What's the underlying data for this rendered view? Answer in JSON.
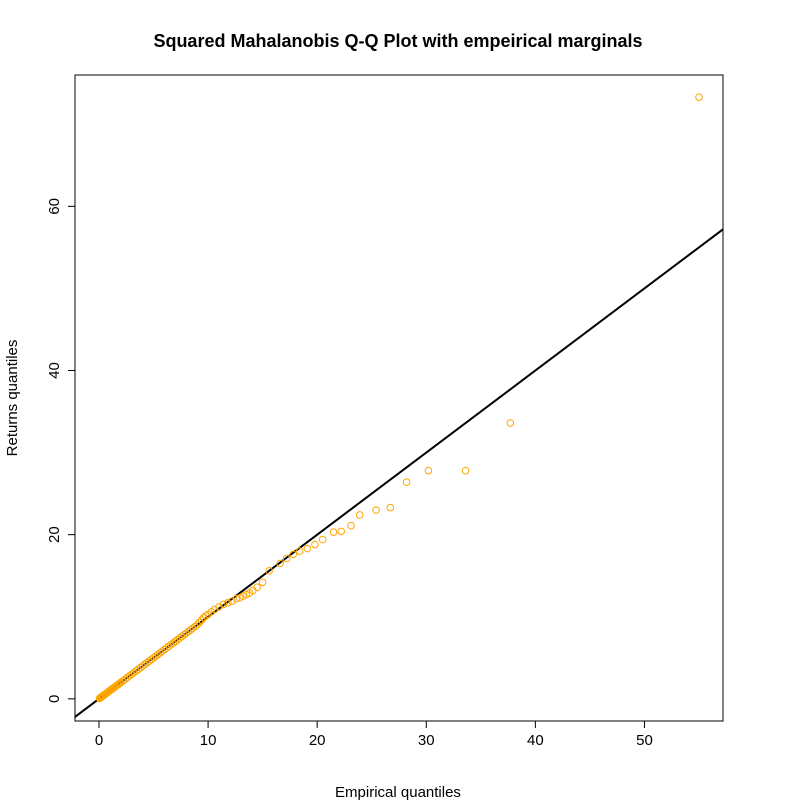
{
  "chart_data": {
    "type": "scatter",
    "title": "Squared Mahalanobis Q-Q Plot with empeirical marginals",
    "xlabel": "Empirical quantiles",
    "ylabel": "Returns quantiles",
    "xlim": [
      -2.2,
      57.2
    ],
    "ylim": [
      -2.7,
      76
    ],
    "x_ticks": [
      0,
      10,
      20,
      30,
      40,
      50
    ],
    "y_ticks": [
      0,
      20,
      40,
      60
    ],
    "grid": false,
    "legend": "none",
    "point_color": "#FFA500",
    "line_color": "#000000",
    "reference_line": {
      "slope": 1.0,
      "intercept": 0
    },
    "series": [
      {
        "x": [
          0.05,
          0.1,
          0.15,
          0.2,
          0.25,
          0.3,
          0.35,
          0.4,
          0.5,
          0.6,
          0.7,
          0.8,
          0.9,
          1.0,
          1.1,
          1.2,
          1.3,
          1.4,
          1.5,
          1.6,
          1.7,
          1.8,
          1.9,
          2.0,
          2.2,
          2.4,
          2.6,
          2.8,
          3.0,
          3.2,
          3.4,
          3.6,
          3.8,
          4.0,
          4.2,
          4.4,
          4.6,
          4.8,
          5.0,
          5.2,
          5.4,
          5.6,
          5.8,
          6.0,
          6.2,
          6.4,
          6.6,
          6.8,
          7.0,
          7.2,
          7.4,
          7.6,
          7.8,
          8.0,
          8.2,
          8.4,
          8.6,
          8.8,
          9.0,
          9.2,
          9.4,
          9.6,
          9.8,
          10.0,
          10.3,
          10.6,
          11.0,
          11.4,
          11.8,
          12.2,
          12.6,
          12.9,
          13.2,
          13.5,
          13.8,
          14.1,
          14.5,
          15.0,
          15.6,
          16.6,
          17.2,
          17.8,
          18.4,
          19.1,
          19.8,
          20.5,
          21.5,
          22.2,
          23.1,
          23.9,
          25.4,
          26.7,
          28.2,
          30.2,
          33.6,
          37.7,
          55.0
        ],
        "y": [
          0.05,
          0.1,
          0.15,
          0.2,
          0.25,
          0.3,
          0.35,
          0.4,
          0.5,
          0.6,
          0.7,
          0.8,
          0.9,
          1.0,
          1.1,
          1.2,
          1.3,
          1.4,
          1.5,
          1.6,
          1.7,
          1.8,
          1.9,
          2.0,
          2.2,
          2.4,
          2.6,
          2.8,
          3.0,
          3.2,
          3.4,
          3.6,
          3.8,
          4.0,
          4.2,
          4.4,
          4.6,
          4.8,
          5.0,
          5.2,
          5.4,
          5.6,
          5.8,
          6.0,
          6.2,
          6.4,
          6.6,
          6.8,
          7.0,
          7.2,
          7.4,
          7.6,
          7.8,
          8.0,
          8.2,
          8.4,
          8.6,
          8.8,
          9.0,
          9.3,
          9.6,
          9.9,
          10.1,
          10.3,
          10.6,
          10.9,
          11.2,
          11.5,
          11.7,
          11.9,
          12.2,
          12.3,
          12.5,
          12.7,
          12.9,
          13.2,
          13.6,
          14.2,
          15.6,
          16.5,
          17.1,
          17.6,
          18.0,
          18.3,
          18.8,
          19.4,
          20.3,
          20.4,
          21.1,
          22.4,
          23.0,
          23.3,
          26.4,
          27.8,
          27.8,
          33.6,
          73.3
        ]
      }
    ]
  }
}
